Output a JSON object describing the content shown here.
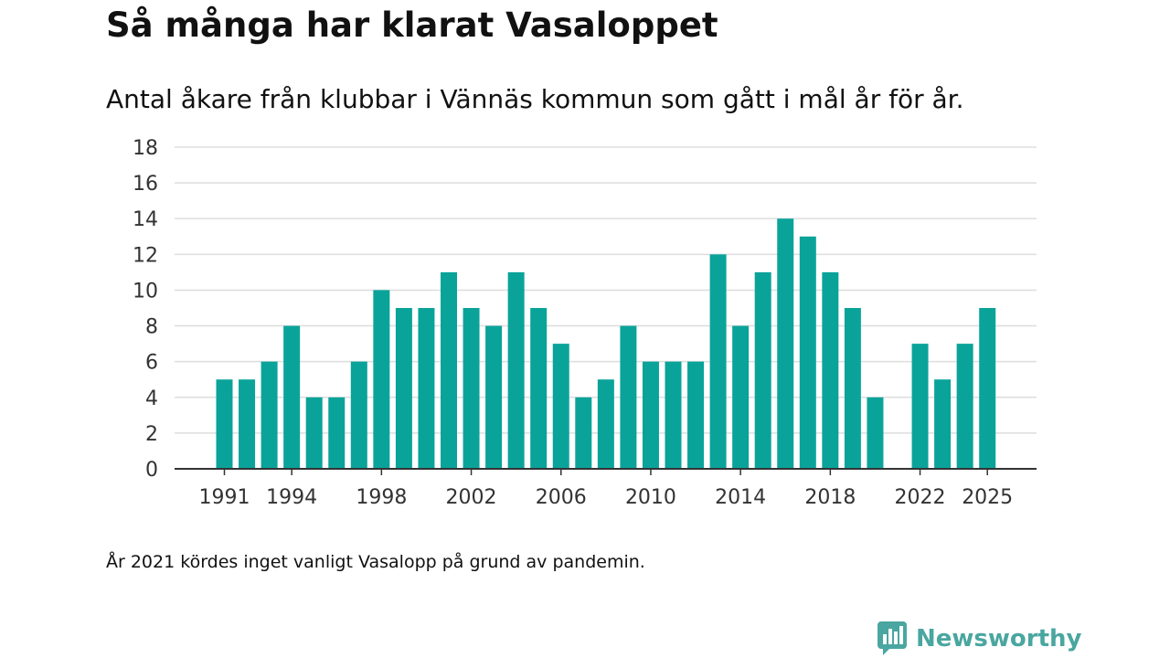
{
  "title": "Så många har klarat Vasaloppet",
  "subtitle": "Antal åkare från klubbar i Vännäs kommun som gått i mål år för år.",
  "footnote": "År 2021 kördes inget vanligt Vasalopp på grund av pandemin.",
  "brand": {
    "name": "Newsworthy",
    "icon": "newsworthy-logo-icon",
    "color": "#4aa6a0"
  },
  "colors": {
    "bar": "#0aa39a",
    "grid": "#dddddd",
    "axis": "#333333",
    "text": "#333333"
  },
  "chart_data": {
    "type": "bar",
    "title": "Så många har klarat Vasaloppet",
    "xlabel": "",
    "ylabel": "",
    "ylim": [
      0,
      18
    ],
    "yticks": [
      0,
      2,
      4,
      6,
      8,
      10,
      12,
      14,
      16,
      18
    ],
    "grid": true,
    "xticks": [
      1991,
      1994,
      1998,
      2002,
      2006,
      2010,
      2014,
      2018,
      2022,
      2025
    ],
    "categories": [
      1991,
      1992,
      1993,
      1994,
      1995,
      1996,
      1997,
      1998,
      1999,
      2000,
      2001,
      2002,
      2003,
      2004,
      2005,
      2006,
      2007,
      2008,
      2009,
      2010,
      2011,
      2012,
      2013,
      2014,
      2015,
      2016,
      2017,
      2018,
      2019,
      2020,
      2021,
      2022,
      2023,
      2024,
      2025
    ],
    "values": [
      5,
      5,
      6,
      8,
      4,
      4,
      6,
      10,
      9,
      9,
      11,
      9,
      8,
      11,
      9,
      7,
      4,
      5,
      8,
      6,
      6,
      6,
      12,
      8,
      11,
      14,
      13,
      11,
      9,
      4,
      null,
      7,
      5,
      7,
      9
    ]
  }
}
